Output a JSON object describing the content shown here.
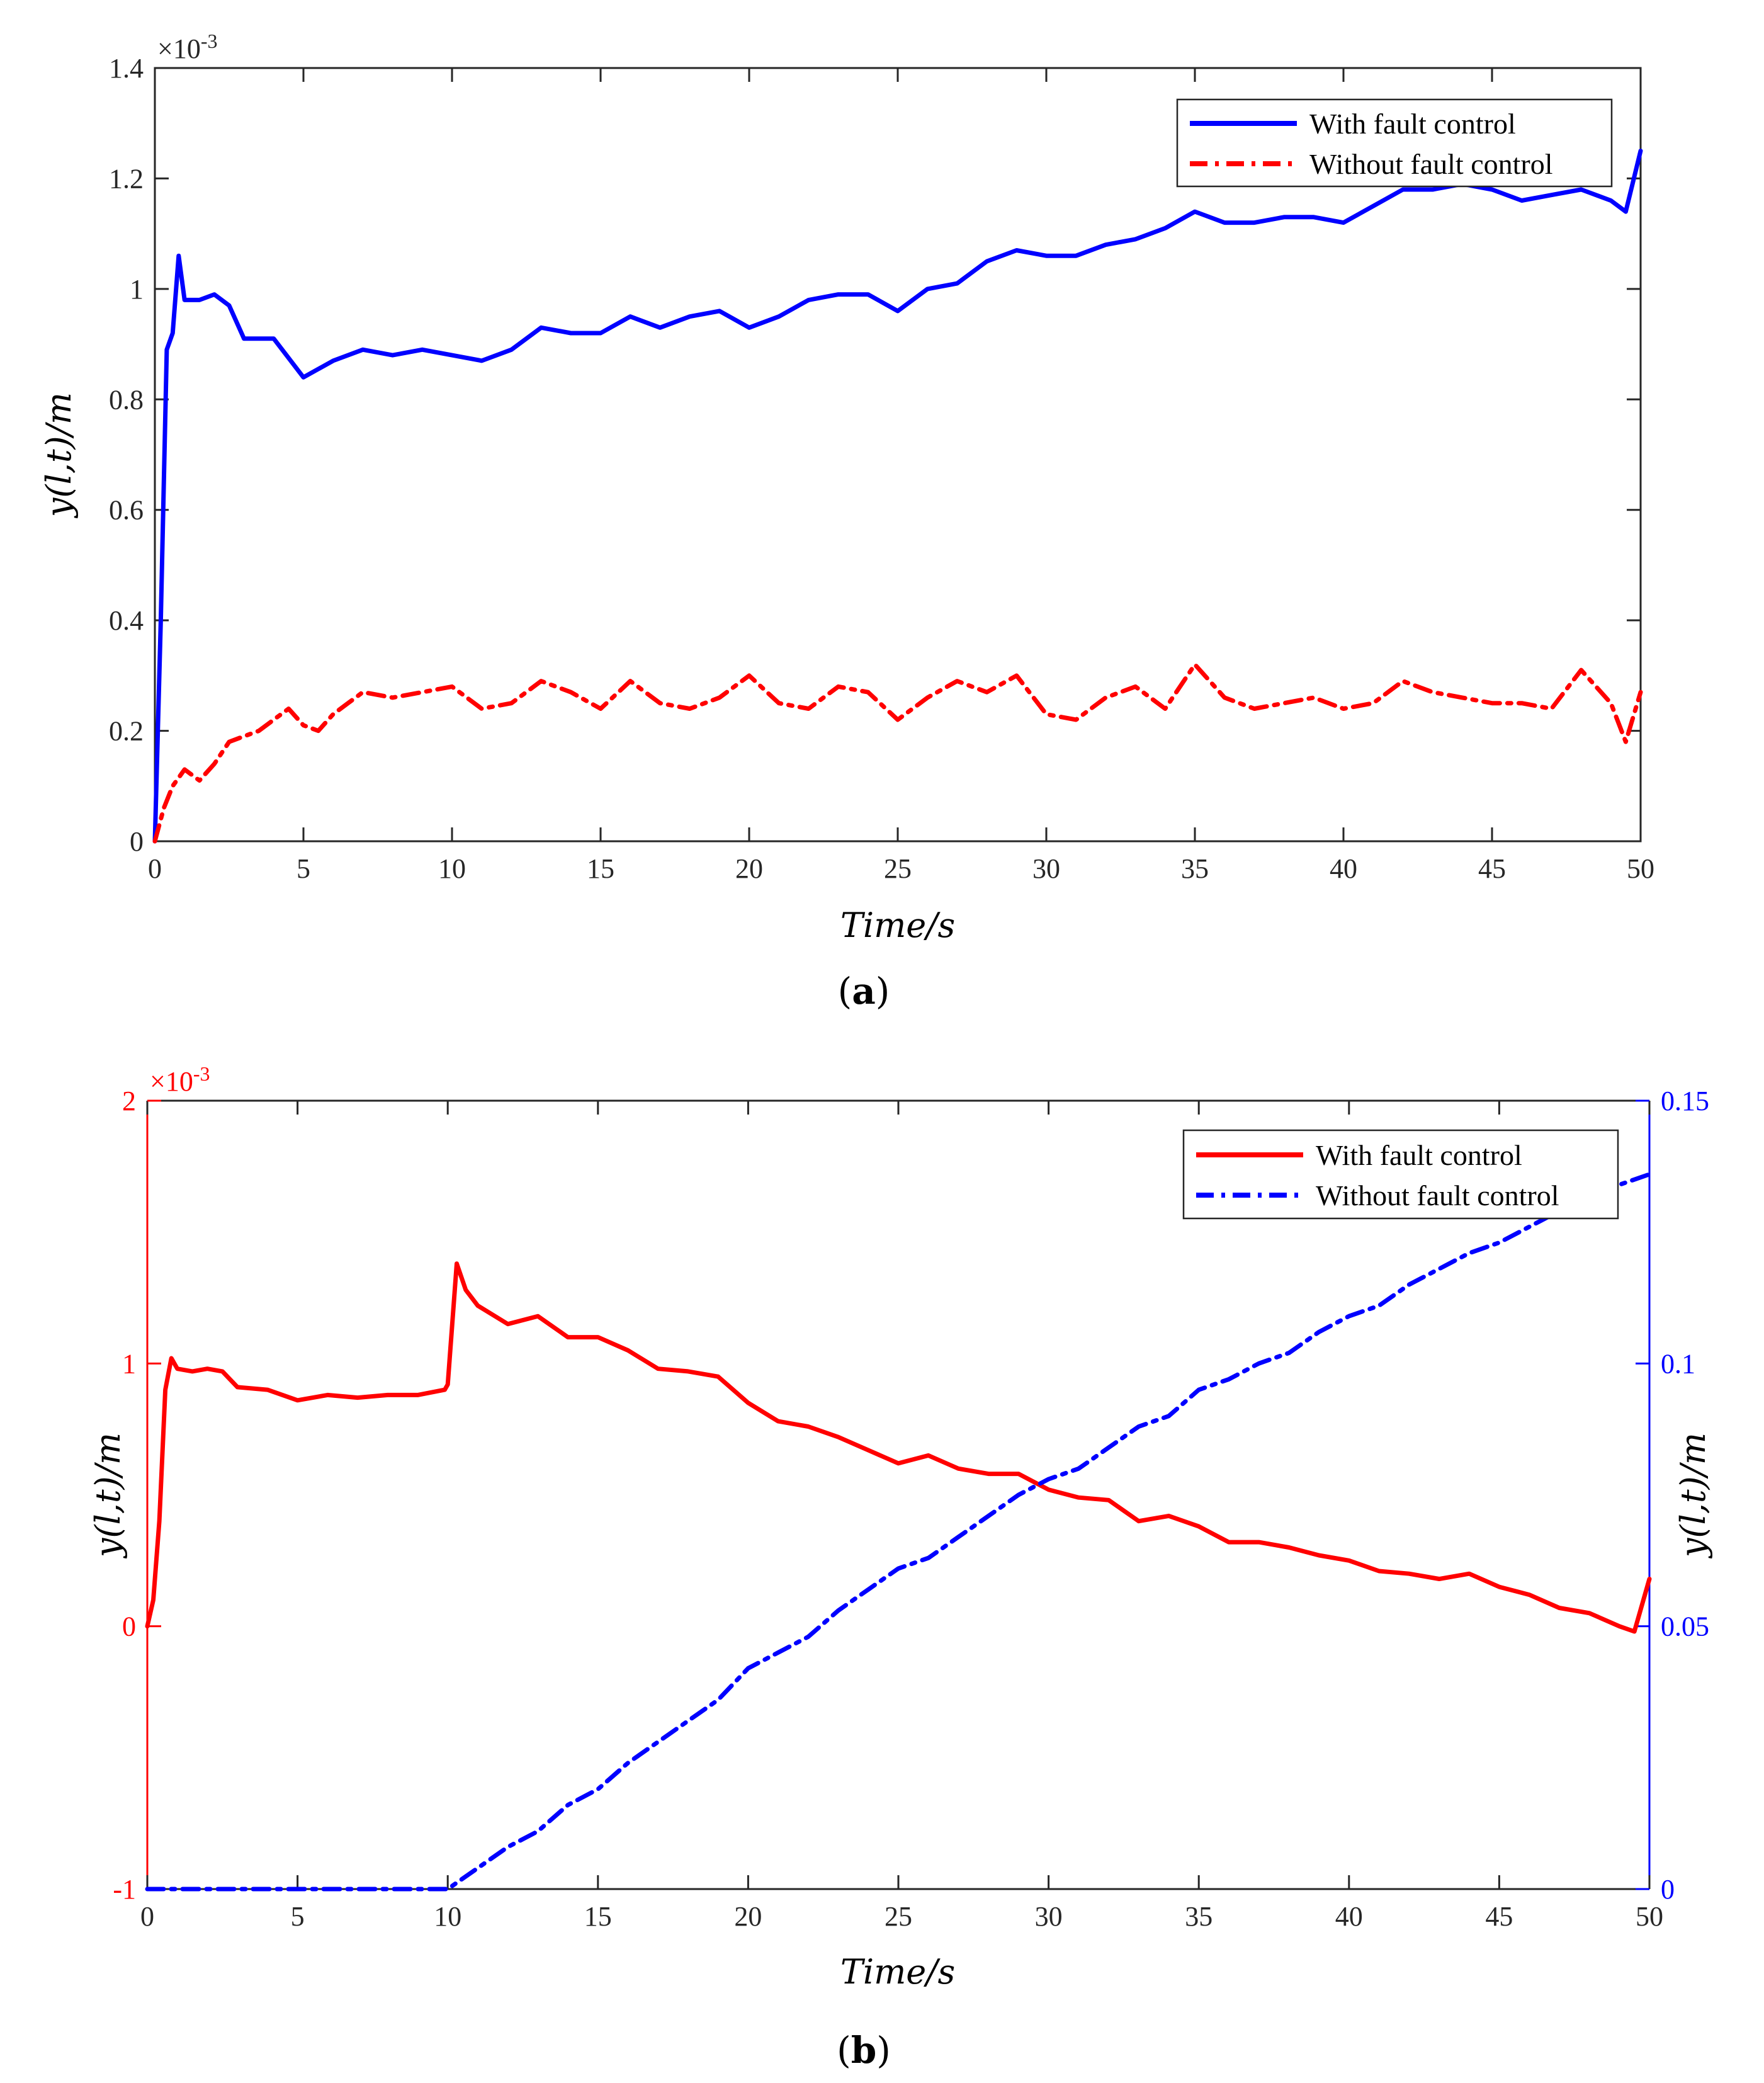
{
  "chart_data": [
    {
      "type": "line",
      "panel_label": "(a)",
      "panel_letter": "a",
      "xlabel": "Time/s",
      "ylabel": "y(l,t)/m",
      "xlim": [
        0,
        50
      ],
      "ylim": [
        0,
        1.4
      ],
      "y_exponent": "×10",
      "y_exponent_power": "-3",
      "xticks": [
        0,
        5,
        10,
        15,
        20,
        25,
        30,
        35,
        40,
        45,
        50
      ],
      "xtick_labels": [
        "0",
        "5",
        "10",
        "15",
        "20",
        "25",
        "30",
        "35",
        "40",
        "45",
        "50"
      ],
      "yticks": [
        0,
        0.2,
        0.4,
        0.6,
        0.8,
        1.0,
        1.2,
        1.4
      ],
      "ytick_labels": [
        "0",
        "0.2",
        "0.4",
        "0.6",
        "0.8",
        "1",
        "1.2",
        "1.4"
      ],
      "legend_position": "top-right",
      "series": [
        {
          "name": "With fault control",
          "color": "#0000ff",
          "style": "solid",
          "x": [
            0,
            0.2,
            0.4,
            0.6,
            0.8,
            1.0,
            1.5,
            2.0,
            2.5,
            3.0,
            4.0,
            5.0,
            6.0,
            7.0,
            8.0,
            9.0,
            10.0,
            11.0,
            12.0,
            13.0,
            14.0,
            15.0,
            16.0,
            17.0,
            18.0,
            19.0,
            20.0,
            21.0,
            22.0,
            23.0,
            24.0,
            25.0,
            26.0,
            27.0,
            28.0,
            29.0,
            30.0,
            31.0,
            32.0,
            33.0,
            34.0,
            35.0,
            36.0,
            37.0,
            38.0,
            39.0,
            40.0,
            41.0,
            42.0,
            43.0,
            44.0,
            45.0,
            46.0,
            47.0,
            48.0,
            49.0,
            49.5,
            50.0
          ],
          "values": [
            0.0,
            0.4,
            0.89,
            0.92,
            1.06,
            0.98,
            0.98,
            0.99,
            0.97,
            0.91,
            0.91,
            0.84,
            0.87,
            0.89,
            0.88,
            0.89,
            0.88,
            0.87,
            0.89,
            0.93,
            0.92,
            0.92,
            0.95,
            0.93,
            0.95,
            0.96,
            0.93,
            0.95,
            0.98,
            0.99,
            0.99,
            0.96,
            1.0,
            1.01,
            1.05,
            1.07,
            1.06,
            1.06,
            1.08,
            1.09,
            1.11,
            1.14,
            1.12,
            1.12,
            1.13,
            1.13,
            1.12,
            1.15,
            1.18,
            1.18,
            1.19,
            1.18,
            1.16,
            1.17,
            1.18,
            1.16,
            1.14,
            1.25
          ]
        },
        {
          "name": "Without fault control",
          "color": "#ff0000",
          "style": "dashdot",
          "x": [
            0,
            0.3,
            0.6,
            1.0,
            1.5,
            2.0,
            2.5,
            3.0,
            3.5,
            4.0,
            4.5,
            5.0,
            5.5,
            6.0,
            6.5,
            7.0,
            8.0,
            9.0,
            10.0,
            11.0,
            12.0,
            13.0,
            14.0,
            15.0,
            16.0,
            17.0,
            18.0,
            19.0,
            20.0,
            21.0,
            22.0,
            23.0,
            24.0,
            25.0,
            26.0,
            27.0,
            28.0,
            29.0,
            30.0,
            31.0,
            32.0,
            33.0,
            34.0,
            35.0,
            36.0,
            37.0,
            38.0,
            39.0,
            40.0,
            41.0,
            42.0,
            43.0,
            44.0,
            45.0,
            46.0,
            47.0,
            48.0,
            49.0,
            49.5,
            50.0
          ],
          "values": [
            0.0,
            0.06,
            0.1,
            0.13,
            0.11,
            0.14,
            0.18,
            0.19,
            0.2,
            0.22,
            0.24,
            0.21,
            0.2,
            0.23,
            0.25,
            0.27,
            0.26,
            0.27,
            0.28,
            0.24,
            0.25,
            0.29,
            0.27,
            0.24,
            0.29,
            0.25,
            0.24,
            0.26,
            0.3,
            0.25,
            0.24,
            0.28,
            0.27,
            0.22,
            0.26,
            0.29,
            0.27,
            0.3,
            0.23,
            0.22,
            0.26,
            0.28,
            0.24,
            0.32,
            0.26,
            0.24,
            0.25,
            0.26,
            0.24,
            0.25,
            0.29,
            0.27,
            0.26,
            0.25,
            0.25,
            0.24,
            0.31,
            0.25,
            0.18,
            0.27
          ]
        }
      ]
    },
    {
      "type": "line",
      "panel_label": "(b)",
      "panel_letter": "b",
      "xlabel": "Time/s",
      "ylabel": "y(l,t)/m",
      "ylabel_right": "y(l,t)/m",
      "xlim": [
        0,
        50
      ],
      "ylim": [
        -1,
        2
      ],
      "ylim_right": [
        0,
        0.15
      ],
      "y_exponent": "×10",
      "y_exponent_power": "-3",
      "xticks": [
        0,
        5,
        10,
        15,
        20,
        25,
        30,
        35,
        40,
        45,
        50
      ],
      "xtick_labels": [
        "0",
        "5",
        "10",
        "15",
        "20",
        "25",
        "30",
        "35",
        "40",
        "45",
        "50"
      ],
      "yticks": [
        -1,
        0,
        1,
        2
      ],
      "ytick_labels": [
        "-1",
        "0",
        "1",
        "2"
      ],
      "yticks_right": [
        0,
        0.05,
        0.1,
        0.15
      ],
      "ytick_labels_right": [
        "0",
        "0.05",
        "0.1",
        "0.15"
      ],
      "left_axis_color": "#ff0000",
      "right_axis_color": "#0000ff",
      "legend_position": "top-right",
      "series": [
        {
          "name": "With fault control",
          "color": "#ff0000",
          "style": "solid",
          "axis": "left",
          "x": [
            0,
            0.2,
            0.4,
            0.6,
            0.8,
            1.0,
            1.5,
            2.0,
            2.5,
            3.0,
            4.0,
            5.0,
            6.0,
            7.0,
            8.0,
            9.0,
            9.9,
            10.0,
            10.3,
            10.6,
            11.0,
            12.0,
            13.0,
            14.0,
            15.0,
            16.0,
            17.0,
            18.0,
            19.0,
            20.0,
            21.0,
            22.0,
            23.0,
            24.0,
            25.0,
            26.0,
            27.0,
            28.0,
            29.0,
            30.0,
            31.0,
            32.0,
            33.0,
            34.0,
            35.0,
            36.0,
            37.0,
            38.0,
            39.0,
            40.0,
            41.0,
            42.0,
            43.0,
            44.0,
            45.0,
            46.0,
            47.0,
            48.0,
            49.0,
            49.5,
            50.0
          ],
          "values": [
            0.0,
            0.1,
            0.4,
            0.9,
            1.02,
            0.98,
            0.97,
            0.98,
            0.97,
            0.91,
            0.9,
            0.86,
            0.88,
            0.87,
            0.88,
            0.88,
            0.9,
            0.92,
            1.38,
            1.28,
            1.22,
            1.15,
            1.18,
            1.1,
            1.1,
            1.05,
            0.98,
            0.97,
            0.95,
            0.85,
            0.78,
            0.76,
            0.72,
            0.67,
            0.62,
            0.65,
            0.6,
            0.58,
            0.58,
            0.52,
            0.49,
            0.48,
            0.4,
            0.42,
            0.38,
            0.32,
            0.32,
            0.3,
            0.27,
            0.25,
            0.21,
            0.2,
            0.18,
            0.2,
            0.15,
            0.12,
            0.07,
            0.05,
            0.0,
            -0.02,
            0.18
          ]
        },
        {
          "name": "Without fault control",
          "color": "#0000ff",
          "style": "dashdot",
          "axis": "right",
          "x": [
            0,
            5,
            10,
            10.5,
            12,
            13,
            14,
            15,
            16,
            17,
            18,
            19,
            20,
            21,
            22,
            23,
            24,
            25,
            26,
            27,
            28,
            29,
            30,
            31,
            32,
            33,
            34,
            35,
            36,
            37,
            38,
            39,
            40,
            41,
            42,
            43,
            44,
            45,
            46,
            47,
            48,
            49,
            50
          ],
          "values": [
            0.0,
            0.0,
            0.0,
            0.002,
            0.008,
            0.011,
            0.016,
            0.019,
            0.024,
            0.028,
            0.032,
            0.036,
            0.042,
            0.045,
            0.048,
            0.053,
            0.057,
            0.061,
            0.063,
            0.067,
            0.071,
            0.075,
            0.078,
            0.08,
            0.084,
            0.088,
            0.09,
            0.095,
            0.097,
            0.1,
            0.102,
            0.106,
            0.109,
            0.111,
            0.115,
            0.118,
            0.121,
            0.123,
            0.126,
            0.129,
            0.131,
            0.134,
            0.136
          ]
        }
      ]
    }
  ]
}
